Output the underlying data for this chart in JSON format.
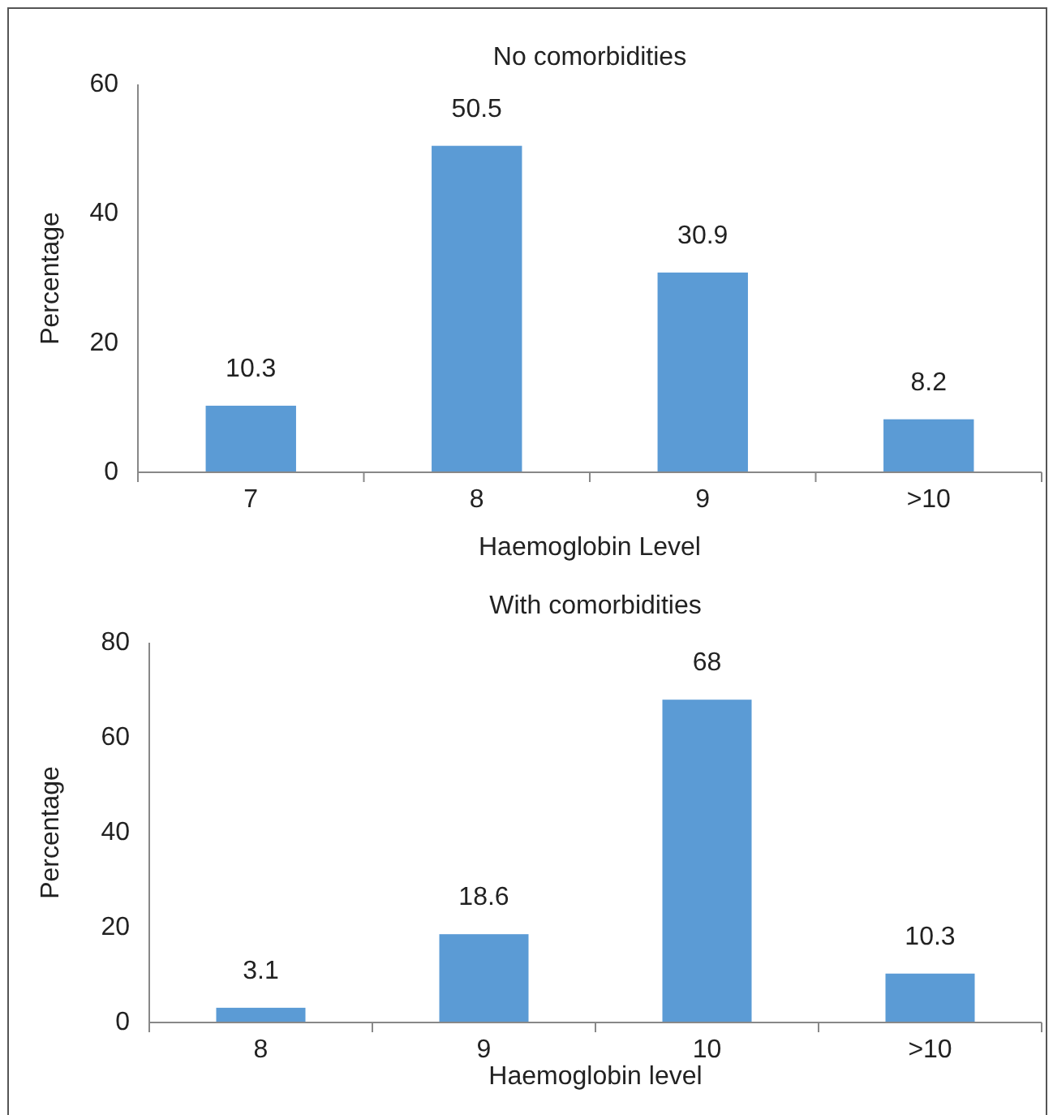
{
  "chart_data": [
    {
      "type": "bar",
      "title": "No comorbidities",
      "xlabel": "Haemoglobin Level",
      "ylabel": "Percentage",
      "categories": [
        "7",
        "8",
        "9",
        ">10"
      ],
      "values": [
        10.3,
        50.5,
        30.9,
        8.2
      ],
      "color": "#5b9bd5",
      "ylim": [
        0,
        60
      ],
      "yticks": [
        0,
        20,
        40,
        60
      ],
      "grid": false,
      "data_labels": true
    },
    {
      "type": "bar",
      "title": "With comorbidities",
      "xlabel": "Haemoglobin level",
      "ylabel": "Percentage",
      "categories": [
        "8",
        "9",
        "10",
        ">10"
      ],
      "values": [
        3.1,
        18.6,
        68,
        10.3
      ],
      "color": "#5b9bd5",
      "ylim": [
        0,
        80
      ],
      "yticks": [
        0,
        20,
        40,
        60,
        80
      ],
      "grid": false,
      "data_labels": true
    }
  ]
}
